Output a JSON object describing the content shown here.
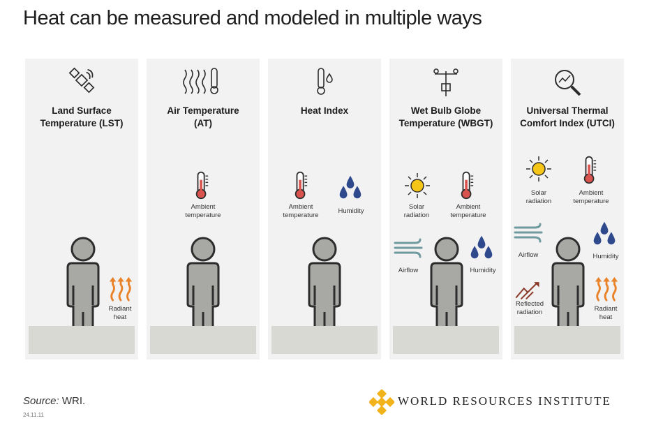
{
  "title": "Heat can be measured and modeled in multiple ways",
  "panels": [
    {
      "title_line1": "Land Surface",
      "title_line2": "Temperature (LST)",
      "icon": "satellite-icon",
      "labels": {
        "radiant_1": "Radiant",
        "radiant_2": "heat"
      }
    },
    {
      "title_line1": "Air Temperature",
      "title_line2": "(AT)",
      "icon": "heat-waves-thermometer-icon",
      "labels": {
        "ambient_1": "Ambient",
        "ambient_2": "temperature"
      }
    },
    {
      "title_line1": "Heat Index",
      "title_line2": "",
      "icon": "thermometer-drop-icon",
      "labels": {
        "ambient_1": "Ambient",
        "ambient_2": "temperature",
        "humidity": "Humidity"
      }
    },
    {
      "title_line1": "Wet Bulb Globe",
      "title_line2": "Temperature (WBGT)",
      "icon": "weather-station-icon",
      "labels": {
        "solar_1": "Solar",
        "solar_2": "radiation",
        "ambient_1": "Ambient",
        "ambient_2": "temperature",
        "airflow": "Airflow",
        "humidity": "Humidity"
      }
    },
    {
      "title_line1": "Universal Thermal",
      "title_line2": "Comfort Index (UTCI)",
      "icon": "magnifier-chart-icon",
      "labels": {
        "solar_1": "Solar",
        "solar_2": "radiation",
        "ambient_1": "Ambient",
        "ambient_2": "temperature",
        "airflow": "Airflow",
        "humidity": "Humidity",
        "reflected_1": "Reflected",
        "reflected_2": "radiation",
        "radiant_1": "Radiant",
        "radiant_2": "heat"
      }
    }
  ],
  "footer": {
    "source_label": "Source:",
    "source_value": " WRI.",
    "date": "24.11.11",
    "brand": "WORLD RESOURCES INSTITUTE"
  },
  "colors": {
    "panel_bg": "#f2f2f2",
    "floor": "#d9d9d4",
    "person": "#a8a8a4",
    "thermo_red": "#d9534f",
    "drop_blue": "#2e4a8c",
    "sun_yellow": "#f5c518",
    "radiant_orange": "#e8832a",
    "wind_teal": "#6f9aa0"
  }
}
